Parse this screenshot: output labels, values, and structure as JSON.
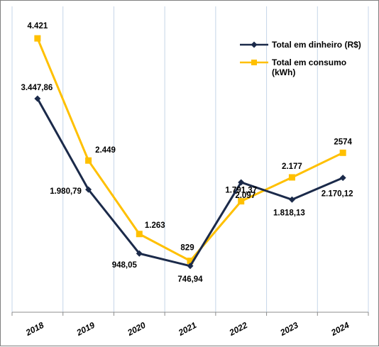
{
  "chart_data": {
    "type": "line",
    "title": "",
    "xlabel": "",
    "ylabel": "",
    "categories": [
      "2018",
      "2019",
      "2020",
      "2021",
      "2022",
      "2023",
      "2024"
    ],
    "ylim": [
      0,
      4800
    ],
    "grid": "vertical",
    "legend_position": "top-right",
    "series": [
      {
        "name": "Total em dinheiro (R$)",
        "color": "#1b2a4a",
        "marker": "diamond",
        "values": [
          3447.86,
          1980.79,
          948.05,
          746.94,
          2097,
          1818.13,
          2170.12
        ],
        "labels": [
          "3.447,86",
          "1.980,79",
          "948,05",
          "746,94",
          "2.097",
          "1.818,13",
          "2.170,12"
        ]
      },
      {
        "name": "Total em consumo (kWh)",
        "legend_lines": [
          "Total em consumo",
          "(kWh)"
        ],
        "color": "#ffc000",
        "marker": "square",
        "values": [
          4421,
          2449,
          1263,
          829,
          1791.37,
          2177,
          2574
        ],
        "labels": [
          "4.421",
          "2.449",
          "1.263",
          "829",
          "1.791,37",
          "2.177",
          "2574"
        ]
      }
    ]
  }
}
